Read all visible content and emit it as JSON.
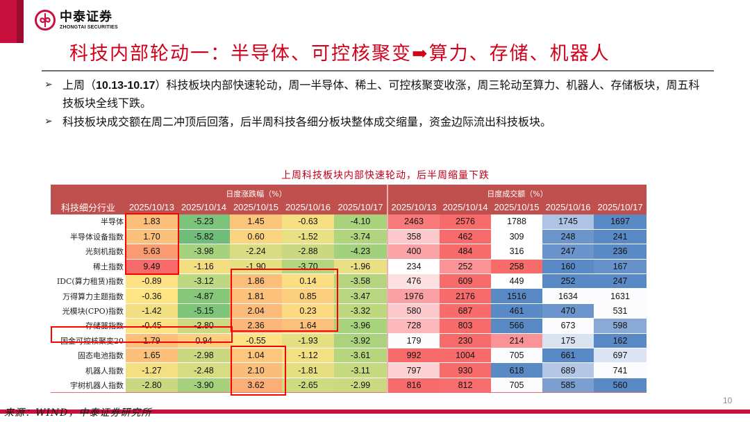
{
  "brand": {
    "name_cn": "中泰证券",
    "name_en": "ZHONGTAI SECURITIES",
    "accent_color": "#c8103f"
  },
  "slide": {
    "title": "科技内部轮动一：半导体、可控核聚变➡算力、存储、机器人",
    "bullets": [
      {
        "prefix": "上周（",
        "bold": "10.13-10.17",
        "text": "）科技板块内部快速轮动，周一半导体、稀土、可控核聚变收涨，周三轮动至算力、机器人、存储板块，周五科技板块全线下跌。"
      },
      {
        "prefix": "",
        "bold": "",
        "text": "科技板块成交额在周二冲顶后回落，后半周科技各细分板块整体成交缩量，资金边际流出科技板块。"
      }
    ],
    "page_number": "10",
    "source": "来源：WIND，中泰证券研究所"
  },
  "table": {
    "title": "上周科技板块内部快速轮动，后半周缩量下跌",
    "row_header": "科技细分行业",
    "group_change": "日度涨跌幅（%）",
    "group_volume": "日度成交额（%）",
    "dates": [
      "2025/10/13",
      "2025/10/14",
      "2025/10/15",
      "2025/10/16",
      "2025/10/17"
    ],
    "rows": [
      {
        "name": "半导体",
        "chg": [
          "1.83",
          "-5.23",
          "1.45",
          "-0.63",
          "-4.10"
        ],
        "vol": [
          "2463",
          "2576",
          "1788",
          "1745",
          "1697"
        ]
      },
      {
        "name": "半导体设备指数",
        "chg": [
          "1.70",
          "-5.82",
          "0.60",
          "-1.52",
          "-3.74"
        ],
        "vol": [
          "358",
          "462",
          "309",
          "248",
          "241"
        ]
      },
      {
        "name": "光刻机指数",
        "chg": [
          "5.63",
          "-3.98",
          "-2.24",
          "-2.88",
          "-4.23"
        ],
        "vol": [
          "400",
          "484",
          "316",
          "247",
          "236"
        ]
      },
      {
        "name": "稀土指数",
        "chg": [
          "9.49",
          "-1.16",
          "-1.90",
          "-3.70",
          "-1.96"
        ],
        "vol": [
          "234",
          "252",
          "258",
          "160",
          "167"
        ]
      },
      {
        "name": "IDC(算力租赁)指数",
        "chg": [
          "-0.89",
          "-3.12",
          "1.86",
          "0.14",
          "-3.58"
        ],
        "vol": [
          "476",
          "609",
          "449",
          "252",
          "247"
        ]
      },
      {
        "name": "万得算力主题指数",
        "chg": [
          "-0.36",
          "-4.87",
          "1.81",
          "0.85",
          "-3.47"
        ],
        "vol": [
          "1976",
          "2176",
          "1516",
          "1634",
          "1631"
        ]
      },
      {
        "name": "光模块(CPO)指数",
        "chg": [
          "-1.42",
          "-5.15",
          "2.04",
          "0.23",
          "-3.32"
        ],
        "vol": [
          "580",
          "687",
          "461",
          "470",
          "531"
        ]
      },
      {
        "name": "存储器指数",
        "chg": [
          "-0.45",
          "-2.80",
          "2.36",
          "1.64",
          "-3.96"
        ],
        "vol": [
          "728",
          "803",
          "566",
          "673",
          "598"
        ]
      },
      {
        "name": "国金可控核聚变20",
        "chg": [
          "1.79",
          "0.94",
          "-0.55",
          "-1.93",
          "-3.92"
        ],
        "vol": [
          "179",
          "230",
          "214",
          "175",
          "162"
        ]
      },
      {
        "name": "固态电池指数",
        "chg": [
          "1.65",
          "-2.98",
          "1.04",
          "-1.12",
          "-3.61"
        ],
        "vol": [
          "992",
          "1004",
          "705",
          "661",
          "697"
        ]
      },
      {
        "name": "机器人指数",
        "chg": [
          "-1.27",
          "-2.48",
          "2.10",
          "-1.81",
          "-3.11"
        ],
        "vol": [
          "797",
          "930",
          "618",
          "689",
          "741"
        ]
      },
      {
        "name": "宇树机器人指数",
        "chg": [
          "-2.80",
          "-3.90",
          "3.62",
          "-2.65",
          "-2.99"
        ],
        "vol": [
          "816",
          "812",
          "705",
          "585",
          "560"
        ]
      }
    ],
    "chg_colors": [
      [
        "#fbbf7a",
        "#7cc47c",
        "#fcc57c",
        "#f6df80",
        "#a8d37c"
      ],
      [
        "#fbc07b",
        "#6fbd78",
        "#fad47e",
        "#e8e082",
        "#b0d57e"
      ],
      [
        "#f99a70",
        "#a6d17d",
        "#d9dc82",
        "#cad981",
        "#a3d07c"
      ],
      [
        "#f86b6b",
        "#f3df82",
        "#e7e082",
        "#b3d57d",
        "#e8e082"
      ],
      [
        "#fee283",
        "#bcd880",
        "#fcbf7b",
        "#fbdd82",
        "#b4d57e"
      ],
      [
        "#fee483",
        "#86c77a",
        "#fcc17b",
        "#fccf7f",
        "#b8d67f"
      ],
      [
        "#f1df82",
        "#7ec57a",
        "#fbbb7a",
        "#fcda81",
        "#bfd880"
      ],
      [
        "#fde383",
        "#cbd981",
        "#fbb77a",
        "#fcc27c",
        "#a9d27d"
      ],
      [
        "#fbbf7a",
        "#fdcd80",
        "#fce283",
        "#e5df82",
        "#abd37d"
      ],
      [
        "#fbc07b",
        "#cad981",
        "#fcc77d",
        "#f3e082",
        "#b5d57e"
      ],
      [
        "#f4df82",
        "#d5dc81",
        "#fbbe7a",
        "#e6df82",
        "#c5d980"
      ],
      [
        "#cad981",
        "#a5d07c",
        "#fbae75",
        "#cfdb81",
        "#cbd981"
      ]
    ],
    "vol_colors": [
      [
        "#f97a7a",
        "#f86b6b",
        "#ffffff",
        "#aec4e4",
        "#5a8ac6"
      ],
      [
        "#fcc9cc",
        "#f86b6b",
        "#ffffff",
        "#6b95cb",
        "#5a8ac6"
      ],
      [
        "#faa4a7",
        "#f86b6b",
        "#ffffff",
        "#6a94cb",
        "#5a8ac6"
      ],
      [
        "#ffffff",
        "#f99396",
        "#f86b6b",
        "#5a8ac6",
        "#6893ca"
      ],
      [
        "#fde0e2",
        "#f86b6b",
        "#ffffff",
        "#5a8ac6",
        "#5a8ac6"
      ],
      [
        "#f9a1a4",
        "#f86b6b",
        "#5a8ac6",
        "#fcfcff",
        "#fcfcff"
      ],
      [
        "#fcc9cc",
        "#f86b6b",
        "#5a8ac6",
        "#6b95cb",
        "#fcfcff"
      ],
      [
        "#fbb9bc",
        "#f86b6b",
        "#5a8ac6",
        "#fcfcff",
        "#8aaad5"
      ],
      [
        "#fcfcff",
        "#f86b6b",
        "#f99396",
        "#d9e3f2",
        "#5a8ac6"
      ],
      [
        "#f86b6b",
        "#f86b6b",
        "#fcfcff",
        "#5a8ac6",
        "#dbe5f3"
      ],
      [
        "#fcd1d4",
        "#f86b6b",
        "#5a8ac6",
        "#b4c8e6",
        "#fcfcff"
      ],
      [
        "#f86b6b",
        "#f86e6e",
        "#fcfcff",
        "#7a9fd0",
        "#5a8ac6"
      ]
    ],
    "highlight_boxes": [
      {
        "label": "monday-semis-rare-earth",
        "rows": "1-4",
        "cols": "2025/10/13"
      },
      {
        "label": "wednesday-thursday-compute-storage",
        "rows": "5-8",
        "cols": "2025/10/15-2025/10/16"
      },
      {
        "label": "fusion-mon-tue",
        "rows": "9",
        "cols": "2025/10/13-2025/10/14"
      },
      {
        "label": "wednesday-battery-robots",
        "rows": "10-12",
        "cols": "2025/10/15"
      }
    ]
  }
}
